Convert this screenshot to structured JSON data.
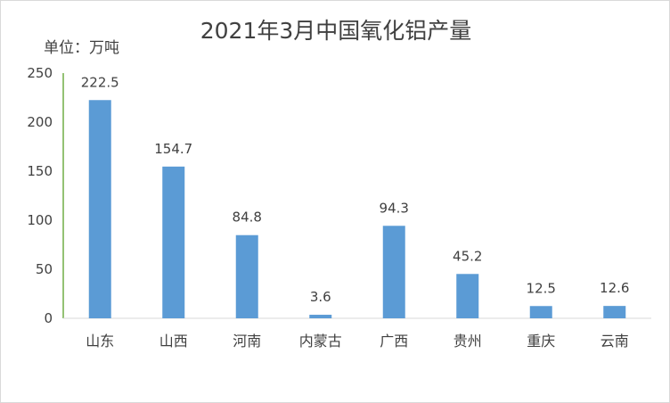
{
  "chart_data": {
    "type": "bar",
    "title": "2021年3月中国氧化铝产量",
    "unit_label": "单位：万吨",
    "categories": [
      "山东",
      "山西",
      "河南",
      "内蒙古",
      "广西",
      "贵州",
      "重庆",
      "云南"
    ],
    "values": [
      222.5,
      154.7,
      84.8,
      3.6,
      94.3,
      45.2,
      12.5,
      12.6
    ],
    "value_labels": [
      "222.5",
      "154.7",
      "84.8",
      "3.6",
      "94.3",
      "45.2",
      "12.5",
      "12.6"
    ],
    "yticks": [
      0,
      50,
      100,
      150,
      200,
      250
    ],
    "ylim": [
      0,
      250
    ],
    "grid": false,
    "bar_color": "#5b9bd5",
    "axis_color": "#70ad47"
  }
}
